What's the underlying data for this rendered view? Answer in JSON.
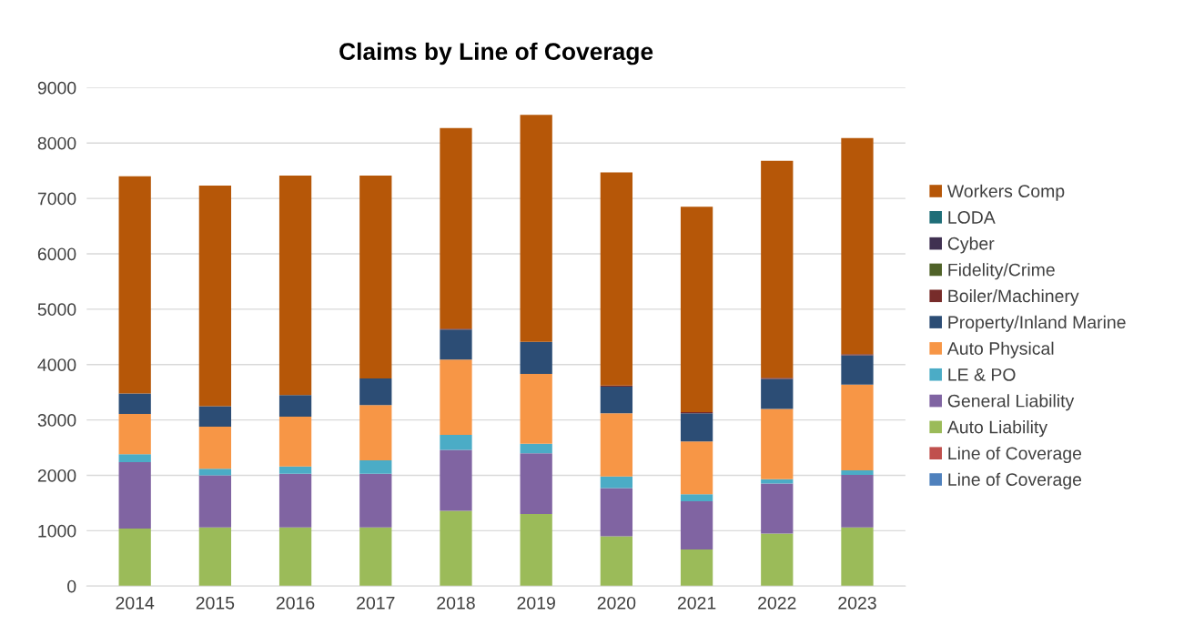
{
  "chart_data": {
    "type": "bar",
    "title": "Claims by Line of Coverage",
    "stacked": true,
    "categories": [
      "2014",
      "2015",
      "2016",
      "2017",
      "2018",
      "2019",
      "2020",
      "2021",
      "2022",
      "2023"
    ],
    "series": [
      {
        "name": "Line of Coverage",
        "color": "#4f81bd",
        "values": [
          0,
          0,
          0,
          0,
          0,
          0,
          0,
          0,
          0,
          0
        ]
      },
      {
        "name": "Line of Coverage",
        "color": "#c0504d",
        "values": [
          0,
          0,
          0,
          0,
          0,
          0,
          0,
          0,
          0,
          0
        ]
      },
      {
        "name": "Auto Liability",
        "color": "#9bbb59",
        "values": [
          1040,
          1060,
          1060,
          1060,
          1360,
          1300,
          900,
          660,
          950,
          1060
        ]
      },
      {
        "name": "General Liability",
        "color": "#8064a2",
        "values": [
          1200,
          940,
          970,
          970,
          1100,
          1100,
          870,
          870,
          900,
          950
        ]
      },
      {
        "name": "LE & PO",
        "color": "#4bacc6",
        "values": [
          140,
          120,
          130,
          240,
          270,
          170,
          210,
          130,
          80,
          80
        ]
      },
      {
        "name": "Auto Physical",
        "color": "#f79646",
        "values": [
          730,
          760,
          900,
          1000,
          1360,
          1260,
          1140,
          950,
          1270,
          1550
        ]
      },
      {
        "name": "Property/Inland Marine",
        "color": "#2c4d75",
        "values": [
          370,
          370,
          390,
          480,
          540,
          580,
          480,
          510,
          540,
          530
        ]
      },
      {
        "name": "Boiler/Machinery",
        "color": "#772c2a",
        "values": [
          0,
          0,
          0,
          0,
          20,
          0,
          20,
          20,
          20,
          20
        ]
      },
      {
        "name": "Fidelity/Crime",
        "color": "#4f6228",
        "values": [
          0,
          0,
          0,
          0,
          0,
          0,
          0,
          0,
          0,
          0
        ]
      },
      {
        "name": "Cyber",
        "color": "#403151",
        "values": [
          0,
          0,
          0,
          0,
          0,
          0,
          0,
          0,
          0,
          0
        ]
      },
      {
        "name": "LODA",
        "color": "#1f6e78",
        "values": [
          0,
          0,
          0,
          0,
          0,
          0,
          0,
          0,
          0,
          0
        ]
      },
      {
        "name": "Workers Comp",
        "color": "#b65708",
        "values": [
          3920,
          3980,
          3960,
          3660,
          3620,
          4100,
          3850,
          3710,
          3920,
          3900
        ]
      }
    ],
    "ylim": [
      0,
      9000
    ],
    "yticks": [
      0,
      1000,
      2000,
      3000,
      4000,
      5000,
      6000,
      7000,
      8000,
      9000
    ],
    "grid": "y",
    "legend": "right"
  }
}
